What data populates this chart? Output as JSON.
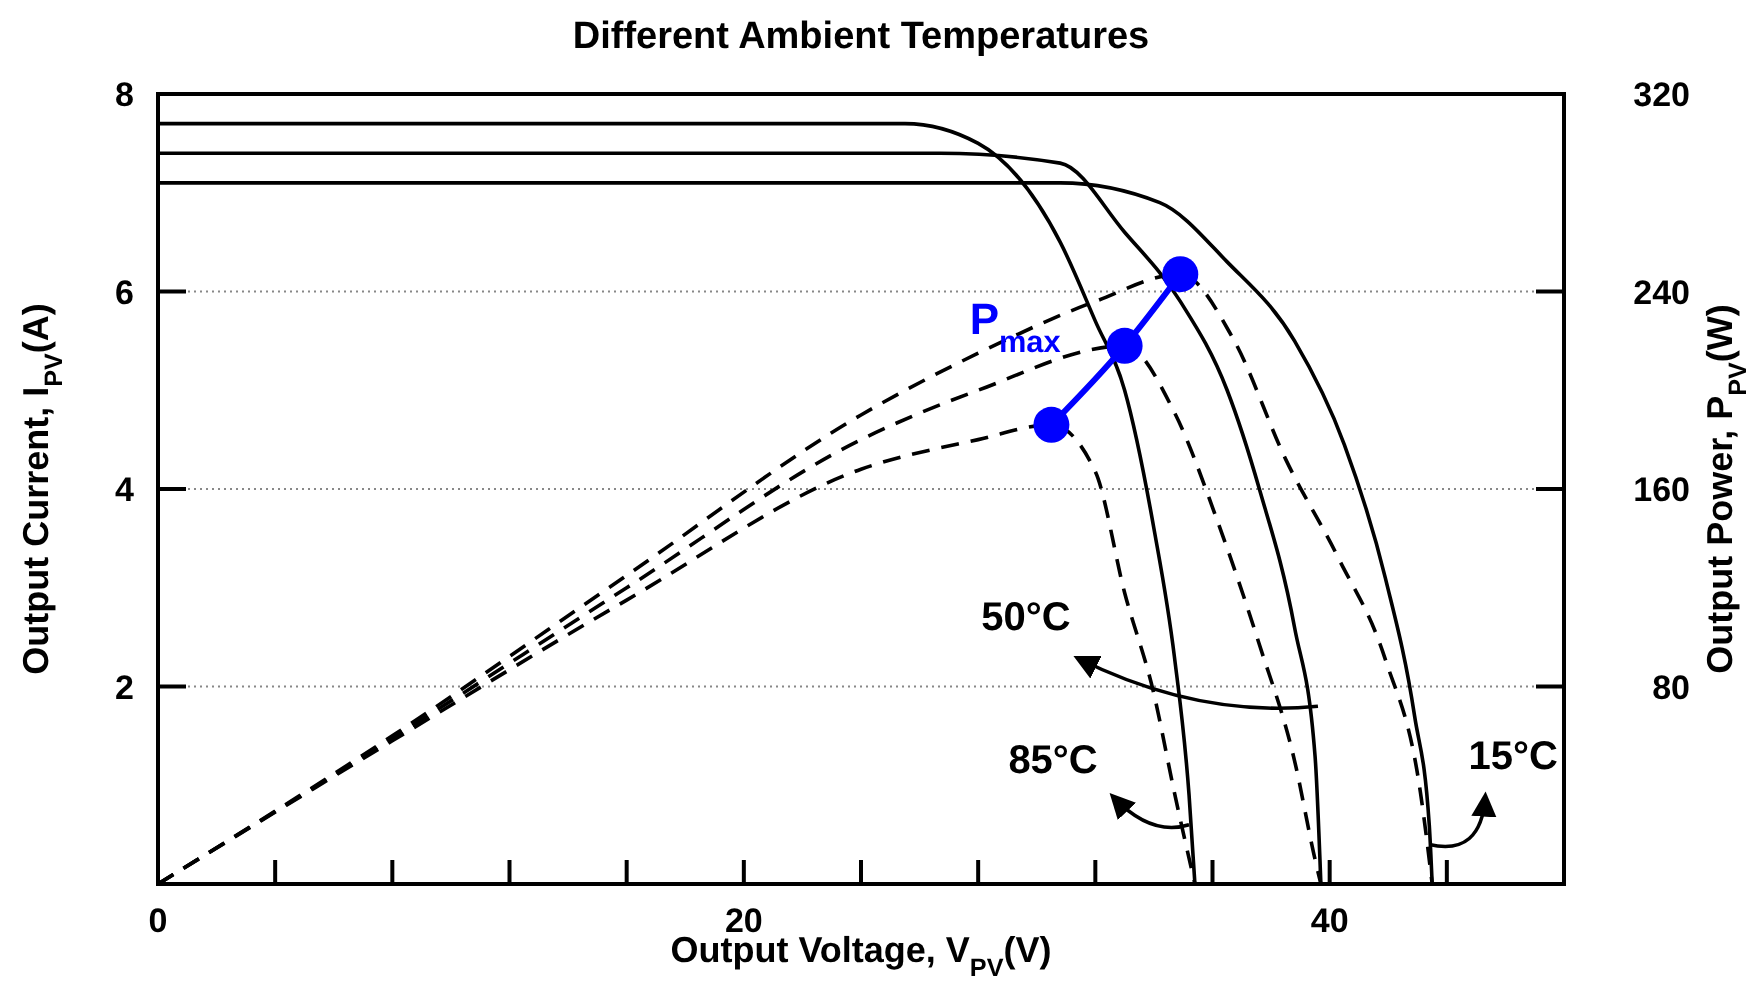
{
  "chart_data": {
    "type": "line",
    "title": "Different Ambient Temperatures",
    "xlabel": "Output Voltage, V$_{PV}$(V)",
    "ylabel": "Output Current, I$_{PV}$(A)",
    "y2label": "Output Power, P$_{PV}$(W)",
    "xlim": [
      0,
      48
    ],
    "xticks": [
      0,
      {
        "value": 4,
        "label": null
      },
      {
        "value": 8,
        "label": null
      },
      {
        "value": 12,
        "label": null
      },
      {
        "value": 16,
        "label": null
      },
      20,
      {
        "value": 24,
        "label": null
      },
      {
        "value": 28,
        "label": null
      },
      {
        "value": 32,
        "label": null
      },
      {
        "value": 36,
        "label": null
      },
      40,
      {
        "value": 44,
        "label": null
      },
      {
        "value": 48,
        "label": null
      }
    ],
    "ylim": [
      0,
      8
    ],
    "yticks": [
      2,
      4,
      6,
      8
    ],
    "y2lim": [
      0,
      320
    ],
    "y2ticks": [
      80,
      160,
      240,
      320
    ],
    "grid": "y",
    "marker": "none",
    "series": [
      {
        "color": "#000000",
        "line_style": "solid",
        "x": [
          0,
          25.5,
          28,
          30.8,
          32,
          33,
          34,
          34.7,
          35.2,
          35.4
        ],
        "values": [
          7.7,
          7.7,
          7.5,
          6.5,
          5.7,
          5.0,
          3.6,
          2.3,
          0.9,
          0
        ]
      },
      {
        "color": "#000000",
        "line_style": "solid",
        "x": [
          0,
          26.7,
          30.8,
          33,
          34.9,
          36.5,
          37.6,
          38.8,
          39.5,
          39.7
        ],
        "values": [
          7.4,
          7.4,
          7.3,
          6.6,
          5.9,
          5.0,
          4.0,
          2.6,
          1.3,
          0
        ]
      },
      {
        "color": "#000000",
        "line_style": "solid",
        "x": [
          0,
          30.8,
          34.2,
          36.5,
          38.8,
          40.5,
          41.9,
          42.9,
          43.4,
          43.5
        ],
        "values": [
          7.1,
          7.1,
          6.9,
          6.3,
          5.5,
          4.45,
          3.1,
          1.7,
          0.6,
          0
        ]
      },
      {
        "color": "#000000",
        "line_style": "dashed",
        "axis": "y2",
        "x": [
          0,
          8,
          16,
          24,
          28,
          30.5,
          32,
          33,
          34,
          34.7,
          35.4
        ],
        "values": [
          0,
          58,
          115,
          168,
          180,
          186,
          167,
          118,
          77,
          37,
          0
        ]
      },
      {
        "color": "#000000",
        "line_style": "dashed",
        "axis": "y2",
        "x": [
          0,
          8,
          16,
          24,
          28,
          33,
          34.7,
          36.2,
          37.6,
          38.8,
          39.5,
          39.7
        ],
        "values": [
          0,
          59,
          120,
          180,
          200,
          218,
          191,
          146,
          97,
          50,
          10,
          0
        ]
      },
      {
        "color": "#000000",
        "line_style": "dashed",
        "axis": "y2",
        "x": [
          0,
          8,
          16,
          24,
          28,
          32,
          34.9,
          36.7,
          38.5,
          40.3,
          41.9,
          43.1,
          43.5
        ],
        "values": [
          0,
          60,
          125,
          190,
          215,
          236,
          247,
          221,
          172,
          132,
          91,
          37,
          0
        ]
      },
      {
        "name": "P$_{max}$",
        "color": "#0000ff",
        "line_style": "solid",
        "marker": "circle",
        "axis": "y2",
        "x": [
          30.5,
          33,
          34.9
        ],
        "values": [
          186,
          218,
          247
        ]
      }
    ],
    "annotations": [
      {
        "text": "85°C",
        "x": 35.2,
        "y": 0.6
      },
      {
        "text": "50°C",
        "x": 39.6,
        "y": 1.8
      },
      {
        "text": "15°C",
        "x": 43.4,
        "y": 0.4
      }
    ]
  }
}
